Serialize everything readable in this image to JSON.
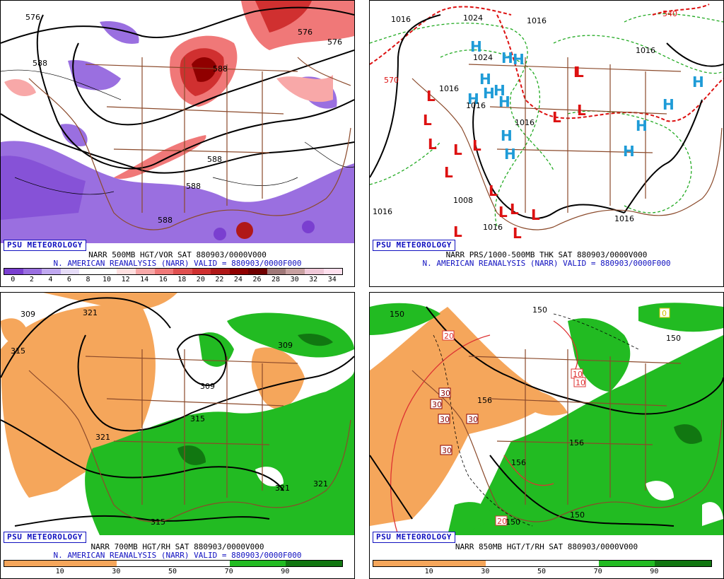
{
  "panels": [
    {
      "badge": "PSU METEOROLOGY",
      "caption1": "NARR 500MB HGT/VOR SAT 880903/0000V000",
      "caption2": "N. AMERICAN REANALYSIS (NARR) VALID = 880903/0000F000",
      "colorbar": [
        "#7a3fd0",
        "#9a6fe0",
        "#c0a8f0",
        "#e6dcf8",
        "#ffffff",
        "#ffffff",
        "#ffe0e0",
        "#f8a8a8",
        "#f07878",
        "#e05050",
        "#d03030",
        "#b01818",
        "#900000",
        "#700000",
        "#a07878",
        "#c8a0a0",
        "#f0c8d8",
        "#ffe0ee"
      ],
      "ticks": [
        "0",
        "2",
        "4",
        "6",
        "8",
        "10",
        "12",
        "14",
        "16",
        "18",
        "20",
        "22",
        "24",
        "26",
        "28",
        "30",
        "32",
        "34"
      ],
      "labels": [
        "576",
        "588",
        "588",
        "576",
        "576",
        "588",
        "588",
        "588"
      ]
    },
    {
      "badge": "PSU METEOROLOGY",
      "caption1": "NARR PRS/1000-500MB THK SAT 880903/0000V000",
      "caption2": "N. AMERICAN REANALYSIS (NARR) VALID = 880903/0000F000",
      "labels": [
        "1016",
        "1024",
        "1016",
        "1016",
        "1024",
        "1016",
        "1016",
        "1016",
        "1016",
        "1016",
        "1008",
        "1016",
        "1016",
        "570",
        "540"
      ]
    },
    {
      "badge": "PSU METEOROLOGY",
      "caption1": "NARR 700MB HGT/RH SAT 880903/0000V000",
      "caption2": "N. AMERICAN REANALYSIS (NARR) VALID = 880903/0000F000",
      "colorbar": [
        "#f5a65b",
        "#f5a65b",
        "#ffffff",
        "#ffffff",
        "#22bb22",
        "#117711"
      ],
      "ticks": [
        "10",
        "30",
        "50",
        "70",
        "90"
      ],
      "labels": [
        "309",
        "321",
        "315",
        "309",
        "309",
        "315",
        "321",
        "321",
        "321",
        "315"
      ]
    },
    {
      "badge": "PSU METEOROLOGY",
      "caption1": "NARR 850MB HGT/T/RH SAT 880903/0000V000",
      "caption2": "",
      "colorbar": [
        "#f5a65b",
        "#f5a65b",
        "#ffffff",
        "#ffffff",
        "#22bb22",
        "#117711"
      ],
      "ticks": [
        "10",
        "30",
        "50",
        "70",
        "90"
      ],
      "labels": [
        "150",
        "150",
        "20",
        "30",
        "30",
        "30",
        "30",
        "30",
        "156",
        "156",
        "150",
        "156",
        "10",
        "10",
        "0",
        "20",
        "150",
        "150"
      ]
    }
  ],
  "pressure_centers": {
    "highs": [
      "H",
      "H",
      "H",
      "H",
      "H",
      "H",
      "H",
      "H",
      "H",
      "H",
      "H",
      "H",
      "H",
      "H"
    ],
    "lows": [
      "L",
      "L",
      "L",
      "L",
      "L",
      "L",
      "L",
      "L",
      "L",
      "L",
      "L",
      "L",
      "L",
      "L",
      "L",
      "L"
    ]
  }
}
